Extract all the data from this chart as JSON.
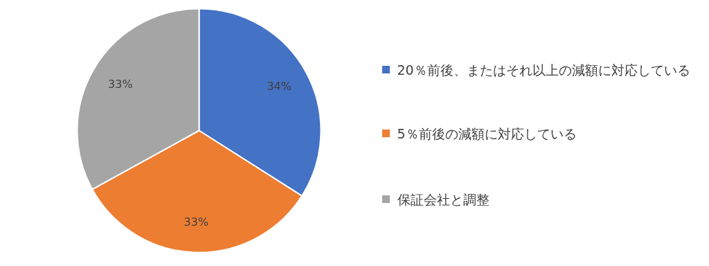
{
  "chart_data": {
    "type": "pie",
    "categories": [
      "20％前後、またはそれ以上の減額に対応している",
      "5％前後の減額に対応している",
      "保証会社と調整"
    ],
    "values": [
      34,
      33,
      33
    ],
    "colors": [
      "#4472c4",
      "#ed7d31",
      "#a5a5a5"
    ],
    "value_labels": [
      "34%",
      "33%",
      "33%"
    ],
    "legend": "right"
  }
}
